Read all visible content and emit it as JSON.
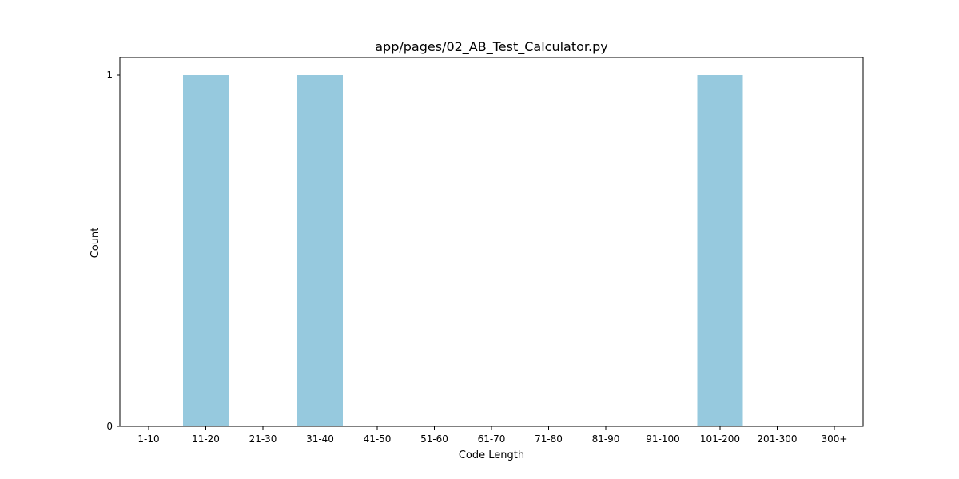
{
  "chart_data": {
    "type": "bar",
    "title": "app/pages/02_AB_Test_Calculator.py",
    "xlabel": "Code Length",
    "ylabel": "Count",
    "categories": [
      "1-10",
      "11-20",
      "21-30",
      "31-40",
      "41-50",
      "51-60",
      "61-70",
      "71-80",
      "81-90",
      "91-100",
      "101-200",
      "201-300",
      "300+"
    ],
    "values": [
      0,
      1,
      0,
      1,
      0,
      0,
      0,
      0,
      0,
      0,
      1,
      0,
      0
    ],
    "yticks": [
      "0",
      "1"
    ],
    "ylim": [
      0,
      1.05
    ],
    "grid": false,
    "bar_color": "#96c9de"
  }
}
